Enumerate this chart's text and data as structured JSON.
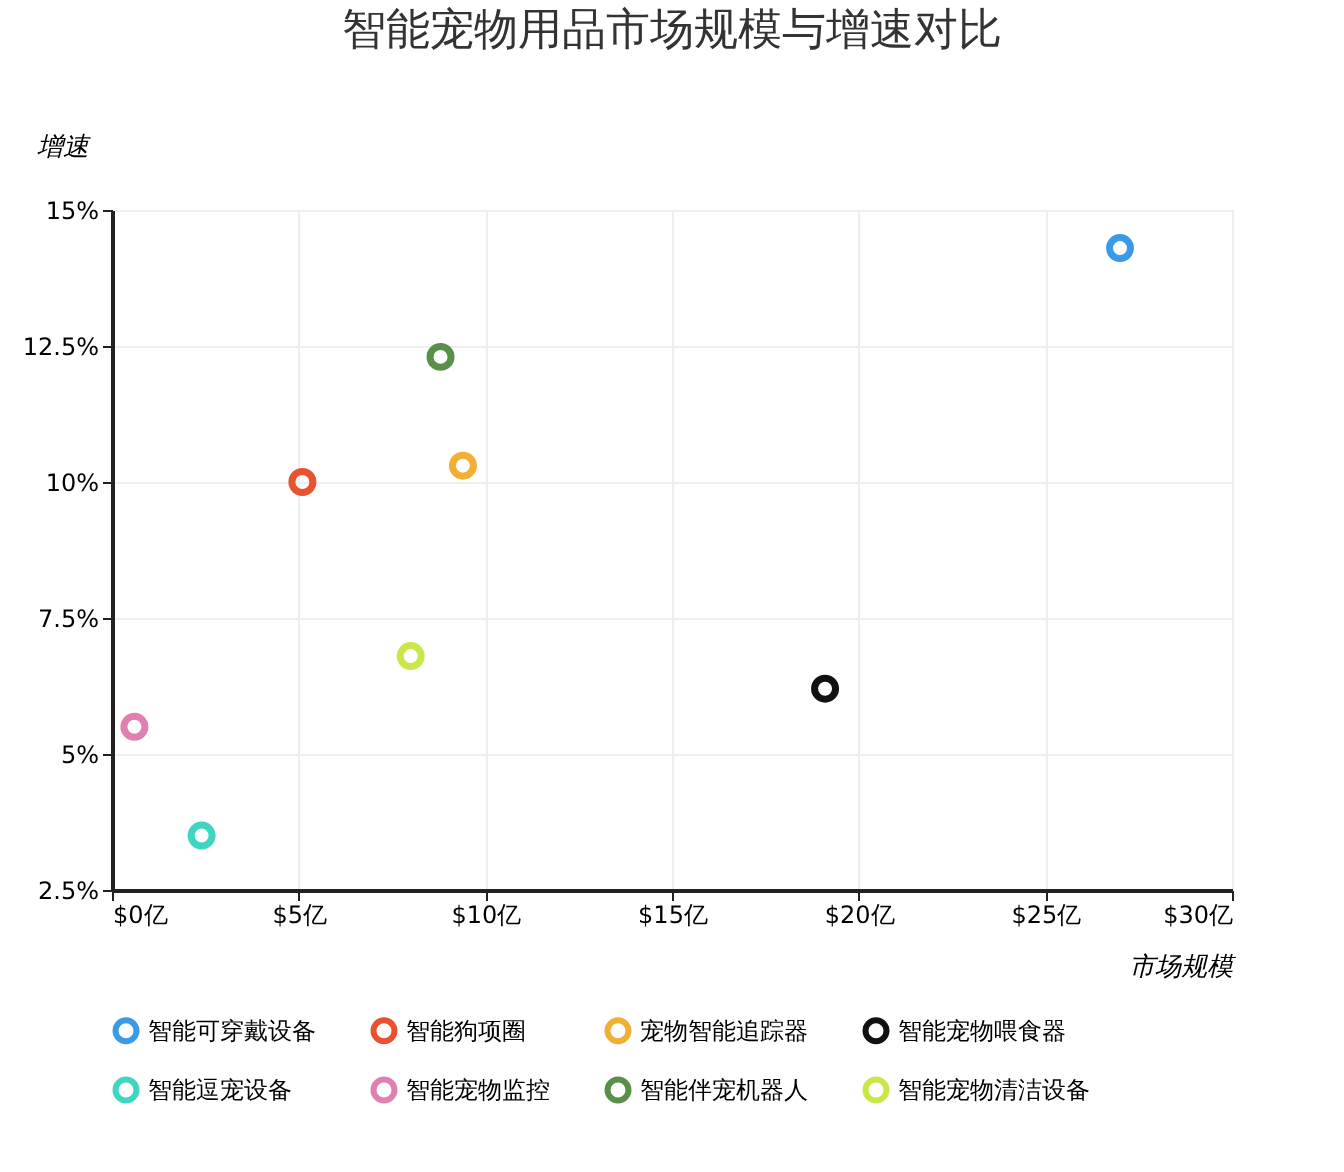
{
  "chart_data": {
    "type": "scatter",
    "title": "智能宠物用品市场规模与增速对比",
    "xlabel": "市场规模",
    "ylabel": "增速",
    "xlim": [
      0,
      30
    ],
    "ylim": [
      2.5,
      15
    ],
    "xticks": [
      {
        "value": 0,
        "label": "$0亿"
      },
      {
        "value": 5,
        "label": "$5亿"
      },
      {
        "value": 10,
        "label": "$10亿"
      },
      {
        "value": 15,
        "label": "$15亿"
      },
      {
        "value": 20,
        "label": "$20亿"
      },
      {
        "value": 25,
        "label": "$25亿"
      },
      {
        "value": 30,
        "label": "$30亿"
      }
    ],
    "yticks": [
      {
        "value": 2.5,
        "label": "2.5%"
      },
      {
        "value": 5,
        "label": "5%"
      },
      {
        "value": 7.5,
        "label": "7.5%"
      },
      {
        "value": 10,
        "label": "10%"
      },
      {
        "value": 12.5,
        "label": "12.5%"
      },
      {
        "value": 15,
        "label": "15%"
      }
    ],
    "grid": true,
    "legend": "bottom",
    "marker": "circle",
    "series": [
      {
        "name": "智能可穿戴设备",
        "color": "#3b9ae8",
        "x": [
          27.0
        ],
        "values": [
          14.3
        ]
      },
      {
        "name": "智能狗项圈",
        "color": "#e8532f",
        "x": [
          5.1
        ],
        "values": [
          10.0
        ]
      },
      {
        "name": "宠物智能追踪器",
        "color": "#f0b034",
        "x": [
          9.4
        ],
        "values": [
          10.3
        ]
      },
      {
        "name": "智能宠物喂食器",
        "color": "#111111",
        "x": [
          19.1
        ],
        "values": [
          6.2
        ]
      },
      {
        "name": "智能逗宠设备",
        "color": "#3ed6c0",
        "x": [
          2.4
        ],
        "values": [
          3.5
        ]
      },
      {
        "name": "智能宠物监控",
        "color": "#e07fb0",
        "x": [
          0.6
        ],
        "values": [
          5.5
        ]
      },
      {
        "name": "智能伴宠机器人",
        "color": "#5a8f4a",
        "x": [
          8.8
        ],
        "values": [
          12.3
        ]
      },
      {
        "name": "智能宠物清洁设备",
        "color": "#c8e84a",
        "x": [
          8.0
        ],
        "values": [
          6.8
        ]
      }
    ]
  }
}
